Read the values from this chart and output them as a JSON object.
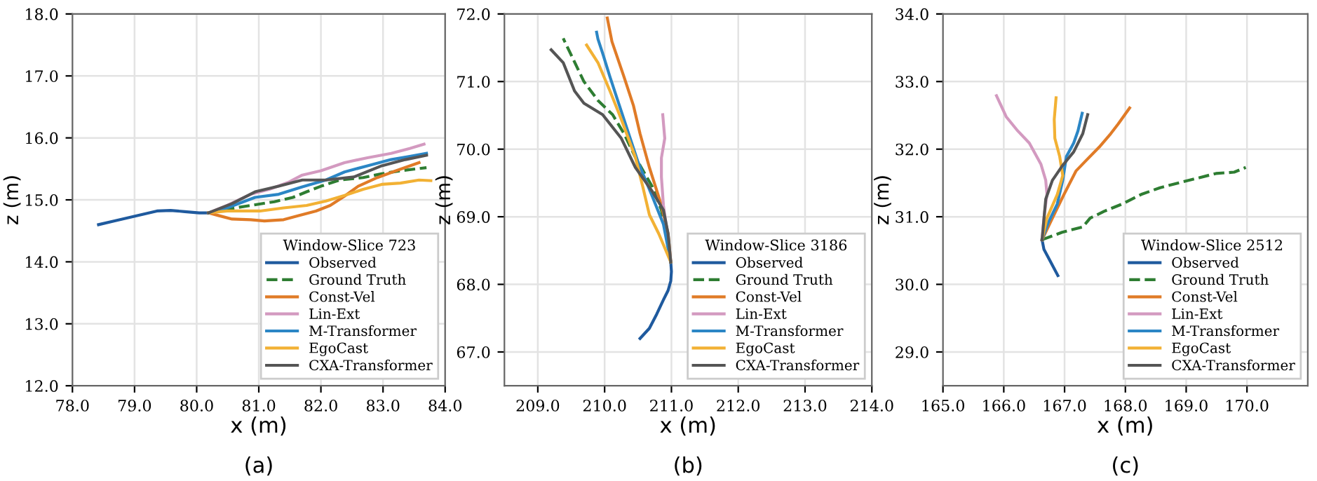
{
  "chart_data": [
    {
      "type": "line",
      "xlabel": "x (m)",
      "ylabel": "z (m)",
      "legend_title": "Window-Slice 723",
      "legend": "bottom right",
      "grid": true,
      "annotations": [
        "(a)"
      ],
      "xlim": [
        78.0,
        84.0
      ],
      "ylim": [
        12.0,
        18.0
      ],
      "xticks": [
        {
          "value": 78,
          "label": "78.0"
        },
        {
          "value": 79,
          "label": "79.0"
        },
        {
          "value": 80,
          "label": "80.0"
        },
        {
          "value": 81,
          "label": "81.0"
        },
        {
          "value": 82,
          "label": "82.0"
        },
        {
          "value": 83,
          "label": "83.0"
        },
        {
          "value": 84,
          "label": "84.0"
        }
      ],
      "yticks": [
        {
          "value": 12,
          "label": "12.0"
        },
        {
          "value": 13,
          "label": "13.0"
        },
        {
          "value": 14,
          "label": "14.0"
        },
        {
          "value": 15,
          "label": "15.0"
        },
        {
          "value": 16,
          "label": "16.0"
        },
        {
          "value": 17,
          "label": "17.0"
        },
        {
          "value": 18,
          "label": "18.0"
        }
      ],
      "series": [
        {
          "name": "Observed",
          "color": "#1f5a9e",
          "x": [
            78.42,
            78.68,
            79.02,
            79.36,
            79.58,
            79.81,
            80.04,
            80.19
          ],
          "values": [
            14.6,
            14.66,
            14.74,
            14.82,
            14.83,
            14.81,
            14.79,
            14.79
          ]
        },
        {
          "name": "Ground Truth",
          "color": "#2e7d32",
          "line_style": "dashed",
          "x": [
            80.19,
            80.49,
            80.87,
            81.25,
            81.55,
            81.77,
            82.0,
            82.3,
            82.68,
            82.98,
            83.28,
            83.7
          ],
          "values": [
            14.79,
            14.85,
            14.91,
            14.97,
            15.04,
            15.13,
            15.22,
            15.32,
            15.36,
            15.42,
            15.47,
            15.52
          ]
        },
        {
          "name": "Const-Vel",
          "color": "#e07b27",
          "x": [
            80.19,
            80.34,
            80.57,
            80.87,
            81.09,
            81.4,
            81.62,
            81.92,
            82.15,
            82.38,
            82.6,
            82.91,
            83.21,
            83.58
          ],
          "values": [
            14.79,
            14.75,
            14.69,
            14.68,
            14.66,
            14.68,
            14.74,
            14.82,
            14.91,
            15.06,
            15.22,
            15.36,
            15.47,
            15.6
          ]
        },
        {
          "name": "Lin-Ext",
          "color": "#d39ac0",
          "x": [
            80.19,
            80.49,
            80.87,
            81.17,
            81.47,
            81.7,
            82.0,
            82.38,
            82.75,
            83.13,
            83.43,
            83.66
          ],
          "values": [
            14.79,
            14.91,
            15.09,
            15.17,
            15.28,
            15.4,
            15.47,
            15.6,
            15.68,
            15.75,
            15.83,
            15.9
          ]
        },
        {
          "name": "M-Transformer",
          "color": "#2b86c5",
          "x": [
            80.19,
            80.49,
            80.94,
            81.32,
            81.7,
            82.08,
            82.38,
            82.75,
            83.13,
            83.43,
            83.7
          ],
          "values": [
            14.79,
            14.87,
            15.04,
            15.09,
            15.21,
            15.32,
            15.45,
            15.55,
            15.65,
            15.7,
            15.75
          ]
        },
        {
          "name": "EgoCast",
          "color": "#f2b134",
          "x": [
            80.19,
            80.49,
            81.02,
            81.4,
            81.77,
            82.08,
            82.38,
            82.68,
            82.98,
            83.28,
            83.58,
            83.77
          ],
          "values": [
            14.79,
            14.82,
            14.82,
            14.87,
            14.91,
            14.98,
            15.07,
            15.17,
            15.25,
            15.27,
            15.32,
            15.31
          ]
        },
        {
          "name": "CXA-Transformer",
          "color": "#555555",
          "x": [
            80.19,
            80.57,
            80.94,
            81.32,
            81.7,
            82.08,
            82.53,
            82.98,
            83.36,
            83.7
          ],
          "values": [
            14.79,
            14.94,
            15.13,
            15.22,
            15.32,
            15.32,
            15.37,
            15.55,
            15.65,
            15.72
          ]
        }
      ]
    },
    {
      "type": "line",
      "xlabel": "x (m)",
      "ylabel": "z (m)",
      "legend_title": "Window-Slice 3186",
      "legend": "bottom right",
      "grid": true,
      "annotations": [
        "(b)"
      ],
      "xlim": [
        208.5,
        214.0
      ],
      "ylim": [
        66.5,
        72.0
      ],
      "xticks": [
        {
          "value": 209,
          "label": "209.0"
        },
        {
          "value": 210,
          "label": "210.0"
        },
        {
          "value": 211,
          "label": "211.0"
        },
        {
          "value": 212,
          "label": "212.0"
        },
        {
          "value": 213,
          "label": "213.0"
        },
        {
          "value": 214,
          "label": "214.0"
        }
      ],
      "yticks": [
        {
          "value": 67,
          "label": "67.0"
        },
        {
          "value": 68,
          "label": "68.0"
        },
        {
          "value": 69,
          "label": "69.0"
        },
        {
          "value": 70,
          "label": "70.0"
        },
        {
          "value": 71,
          "label": "71.0"
        },
        {
          "value": 72,
          "label": "72.0"
        }
      ],
      "series": [
        {
          "name": "Observed",
          "color": "#1f5a9e",
          "x": [
            210.53,
            210.67,
            210.78,
            210.88,
            210.95,
            210.99,
            211.0,
            210.99
          ],
          "values": [
            67.2,
            67.35,
            67.56,
            67.77,
            67.91,
            68.05,
            68.19,
            68.33
          ]
        },
        {
          "name": "Ground Truth",
          "color": "#2e7d32",
          "line_style": "dashed",
          "x": [
            210.99,
            210.95,
            210.85,
            210.71,
            210.46,
            210.29,
            210.12,
            209.9,
            209.69,
            209.52,
            209.38
          ],
          "values": [
            68.33,
            68.61,
            69.1,
            69.45,
            69.88,
            70.23,
            70.51,
            70.72,
            71.0,
            71.35,
            71.64
          ]
        },
        {
          "name": "Const-Vel",
          "color": "#e07b27",
          "x": [
            210.99,
            210.95,
            210.85,
            210.67,
            210.53,
            210.43,
            210.29,
            210.11,
            210.04
          ],
          "values": [
            68.33,
            68.75,
            69.17,
            69.73,
            70.23,
            70.65,
            71.07,
            71.59,
            71.94
          ]
        },
        {
          "name": "Lin-Ext",
          "color": "#d39ac0",
          "x": [
            210.99,
            210.94,
            210.88,
            210.85,
            210.85,
            210.9,
            210.87
          ],
          "values": [
            68.33,
            68.75,
            69.17,
            69.59,
            69.87,
            70.16,
            70.51
          ]
        },
        {
          "name": "M-Transformer",
          "color": "#2b86c5",
          "x": [
            210.99,
            210.88,
            210.71,
            210.5,
            210.36,
            210.22,
            210.08,
            209.97,
            209.9,
            209.88
          ],
          "values": [
            68.33,
            68.89,
            69.31,
            69.81,
            70.23,
            70.65,
            71.07,
            71.42,
            71.63,
            71.73
          ]
        },
        {
          "name": "EgoCast",
          "color": "#f2b134",
          "x": [
            210.99,
            210.81,
            210.67,
            210.57,
            210.46,
            210.25,
            210.08,
            209.9,
            209.73
          ],
          "values": [
            68.33,
            68.75,
            69.03,
            69.45,
            69.88,
            70.44,
            70.86,
            71.28,
            71.54
          ]
        },
        {
          "name": "CXA-Transformer",
          "color": "#555555",
          "x": [
            210.99,
            210.95,
            210.88,
            210.71,
            210.46,
            210.25,
            209.97,
            209.69,
            209.55,
            209.38,
            209.2
          ],
          "values": [
            68.33,
            68.75,
            69.1,
            69.38,
            69.73,
            70.16,
            70.51,
            70.68,
            70.86,
            71.28,
            71.47
          ]
        }
      ]
    },
    {
      "type": "line",
      "xlabel": "x (m)",
      "ylabel": "z (m)",
      "legend_title": "Window-Slice 2512",
      "legend": "bottom right",
      "grid": true,
      "annotations": [
        "(c)"
      ],
      "xlim": [
        165.0,
        171.0
      ],
      "ylim": [
        28.5,
        34.0
      ],
      "xticks": [
        {
          "value": 165,
          "label": "165.0"
        },
        {
          "value": 166,
          "label": "166.0"
        },
        {
          "value": 167,
          "label": "167.0"
        },
        {
          "value": 168,
          "label": "168.0"
        },
        {
          "value": 169,
          "label": "169.0"
        },
        {
          "value": 170,
          "label": "170.0"
        }
      ],
      "yticks": [
        {
          "value": 29,
          "label": "29.0"
        },
        {
          "value": 30,
          "label": "30.0"
        },
        {
          "value": 31,
          "label": "31.0"
        },
        {
          "value": 32,
          "label": "32.0"
        },
        {
          "value": 33,
          "label": "33.0"
        },
        {
          "value": 34,
          "label": "34.0"
        }
      ],
      "series": [
        {
          "name": "Observed",
          "color": "#1f5a9e",
          "x": [
            166.89,
            166.76,
            166.66,
            166.63
          ],
          "values": [
            30.13,
            30.35,
            30.52,
            30.66
          ]
        },
        {
          "name": "Ground Truth",
          "color": "#2e7d32",
          "line_style": "dashed",
          "x": [
            166.63,
            166.96,
            167.3,
            167.42,
            167.65,
            167.95,
            168.26,
            168.57,
            168.87,
            169.18,
            169.49,
            169.79,
            169.98
          ],
          "values": [
            30.66,
            30.77,
            30.85,
            30.98,
            31.08,
            31.19,
            31.33,
            31.43,
            31.5,
            31.57,
            31.64,
            31.66,
            31.73
          ]
        },
        {
          "name": "Const-Vel",
          "color": "#e07b27",
          "x": [
            166.63,
            166.8,
            166.99,
            167.19,
            167.34,
            167.57,
            167.76,
            167.88,
            168.07
          ],
          "values": [
            30.66,
            30.98,
            31.33,
            31.68,
            31.82,
            32.03,
            32.23,
            32.37,
            32.61
          ]
        },
        {
          "name": "Lin-Ext",
          "color": "#d39ac0",
          "x": [
            166.63,
            166.66,
            166.71,
            166.69,
            166.61,
            166.42,
            166.23,
            166.04,
            165.88
          ],
          "values": [
            30.66,
            30.98,
            31.33,
            31.54,
            31.78,
            32.09,
            32.27,
            32.48,
            32.79
          ]
        },
        {
          "name": "M-Transformer",
          "color": "#2b86c5",
          "x": [
            166.63,
            166.73,
            166.88,
            166.97,
            167.03,
            167.15,
            167.22,
            167.29
          ],
          "values": [
            30.66,
            30.91,
            31.19,
            31.54,
            31.89,
            32.09,
            32.27,
            32.53
          ]
        },
        {
          "name": "EgoCast",
          "color": "#f2b134",
          "x": [
            166.63,
            166.71,
            166.88,
            166.97,
            166.92,
            166.84,
            166.83,
            166.86
          ],
          "values": [
            30.66,
            30.98,
            31.33,
            31.61,
            31.89,
            32.16,
            32.44,
            32.76
          ]
        },
        {
          "name": "CXA-Transformer",
          "color": "#555555",
          "x": [
            166.63,
            166.69,
            166.8,
            166.96,
            167.15,
            167.3,
            167.38
          ],
          "values": [
            30.66,
            31.26,
            31.54,
            31.75,
            31.96,
            32.23,
            32.51
          ]
        }
      ]
    }
  ]
}
